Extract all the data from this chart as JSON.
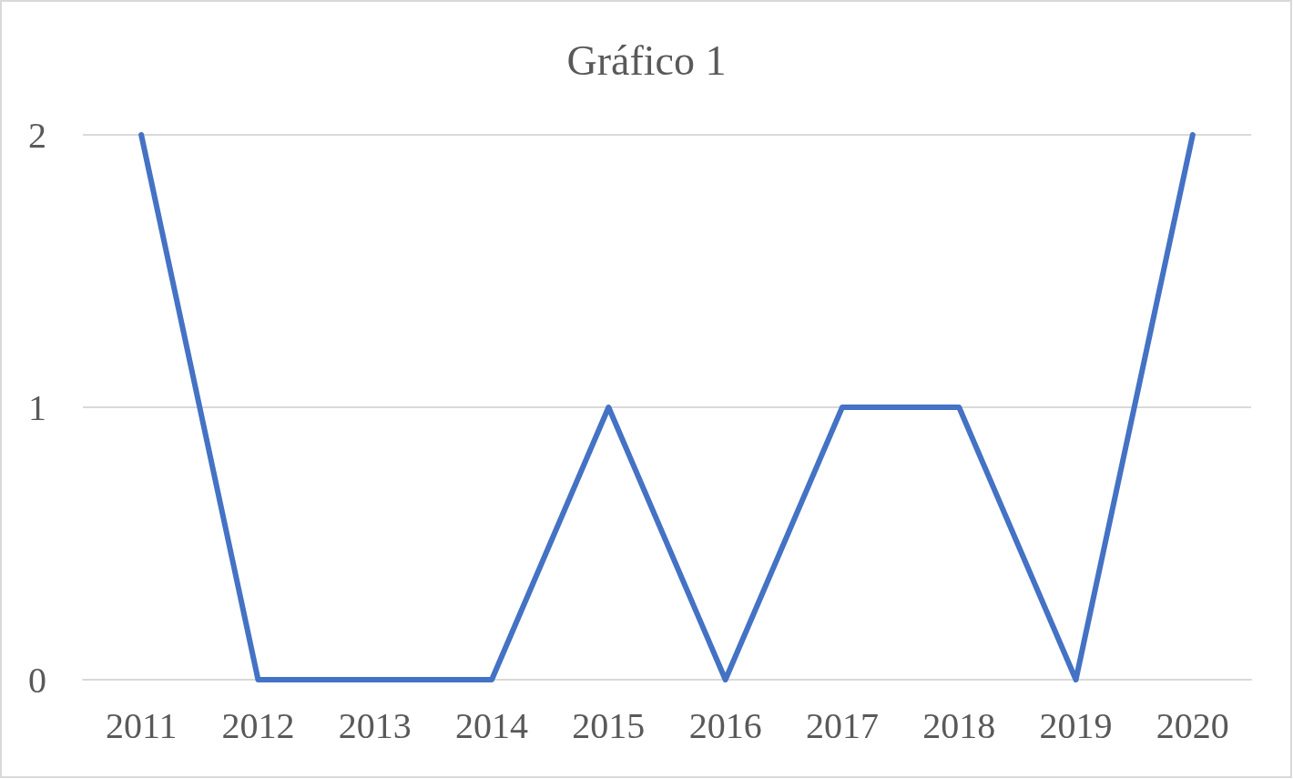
{
  "chart_data": {
    "type": "line",
    "title": "Gráfico 1",
    "categories": [
      "2011",
      "2012",
      "2013",
      "2014",
      "2015",
      "2016",
      "2017",
      "2018",
      "2019",
      "2020"
    ],
    "series": [
      {
        "color": "#4472c4",
        "values": [
          2,
          0,
          0,
          0,
          1,
          0,
          1,
          1,
          0,
          2
        ]
      }
    ],
    "ylim": [
      0,
      2
    ],
    "yticks": [
      0,
      1,
      2
    ],
    "grid": "y",
    "marker": "none",
    "line_style": "solid"
  }
}
